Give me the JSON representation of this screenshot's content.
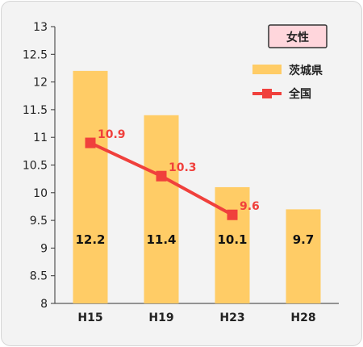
{
  "chart_data": {
    "type": "bar+line",
    "title": "女性",
    "categories": [
      "H15",
      "H19",
      "H23",
      "H28"
    ],
    "ylim": [
      8,
      13
    ],
    "yticks": [
      "8",
      "8.5",
      "9",
      "9.5",
      "10",
      "10.5",
      "11",
      "11.5",
      "12",
      "12.5",
      "13"
    ],
    "grid": false,
    "legend_position": "top-right",
    "series": [
      {
        "name": "茨城県",
        "type": "bar",
        "color": "#ffcc66",
        "values": [
          12.2,
          11.4,
          10.1,
          9.7
        ],
        "labels": [
          "12.2",
          "11.4",
          "10.1",
          "9.7"
        ]
      },
      {
        "name": "全国",
        "type": "line",
        "color": "#f0403c",
        "values": [
          10.9,
          10.3,
          9.6,
          null
        ],
        "labels": [
          "10.9",
          "10.3",
          "9.6",
          ""
        ]
      }
    ]
  }
}
